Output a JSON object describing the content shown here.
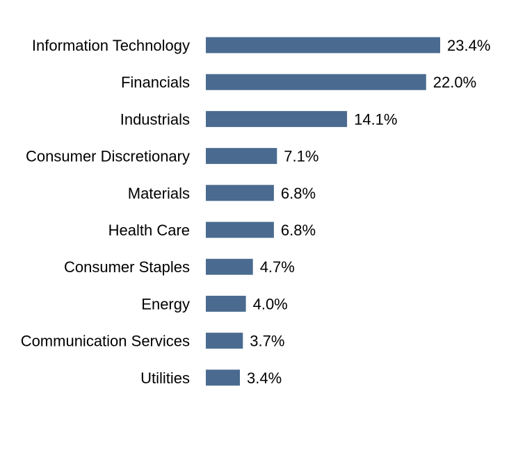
{
  "chart_data": {
    "type": "bar",
    "orientation": "horizontal",
    "categories": [
      "Information Technology",
      "Financials",
      "Industrials",
      "Consumer Discretionary",
      "Materials",
      "Health Care",
      "Consumer Staples",
      "Energy",
      "Communication Services",
      "Utilities"
    ],
    "values": [
      23.4,
      22.0,
      14.1,
      7.1,
      6.8,
      6.8,
      4.7,
      4.0,
      3.7,
      3.4
    ],
    "value_labels": [
      "23.4%",
      "22.0%",
      "14.1%",
      "7.1%",
      "6.8%",
      "6.8%",
      "4.7%",
      "4.0%",
      "3.7%",
      "3.4%"
    ],
    "unit": "%",
    "xlim": [
      0,
      23.4
    ],
    "grid": false,
    "axes_visible": false,
    "bar_color": "#4a6b8f"
  }
}
